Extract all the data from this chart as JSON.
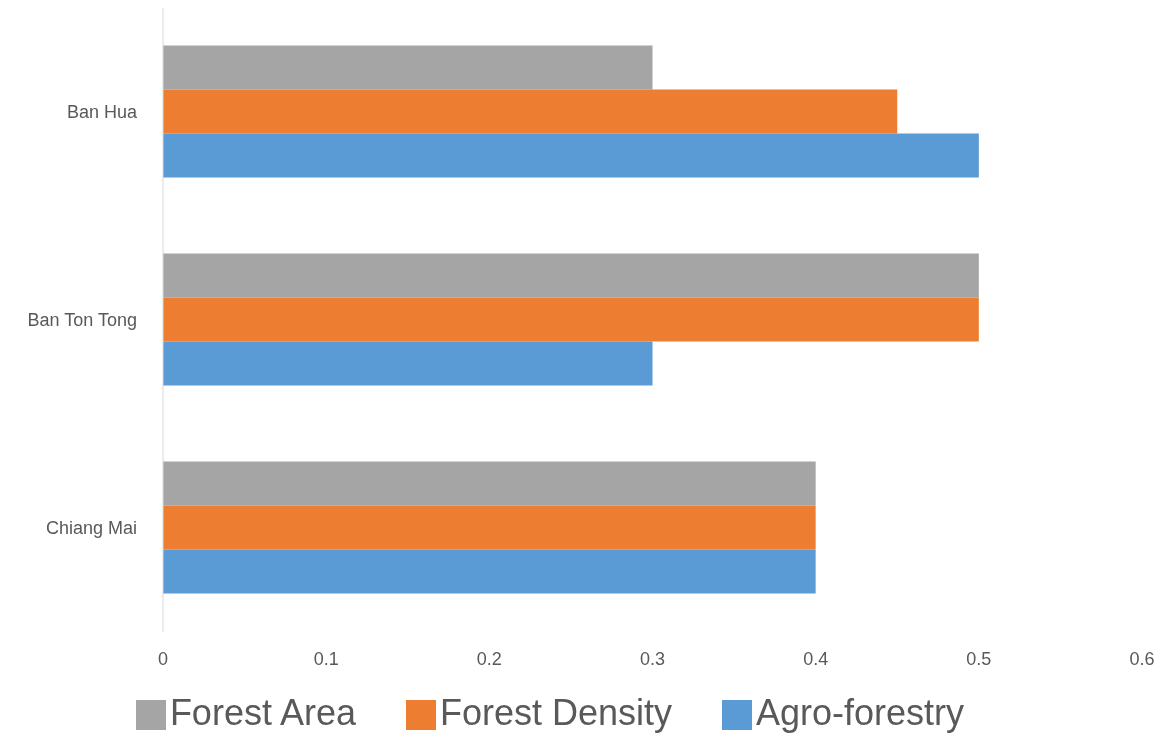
{
  "chart_data": {
    "type": "bar",
    "orientation": "horizontal",
    "categories": [
      "Ban Hua",
      "Ban Ton Tong",
      "Chiang Mai"
    ],
    "series": [
      {
        "name": "Forest Area",
        "color": "#a5a5a5",
        "values": [
          0.3,
          0.5,
          0.4
        ]
      },
      {
        "name": "Forest Density",
        "color": "#ed7d31",
        "values": [
          0.45,
          0.5,
          0.4
        ]
      },
      {
        "name": "Agro-forestry",
        "color": "#5b9bd5",
        "values": [
          0.5,
          0.3,
          0.4
        ]
      }
    ],
    "xlim": [
      0,
      0.6
    ],
    "xticks": [
      0,
      0.1,
      0.2,
      0.3,
      0.4,
      0.5,
      0.6
    ],
    "grid": false,
    "legend": "bottom"
  }
}
